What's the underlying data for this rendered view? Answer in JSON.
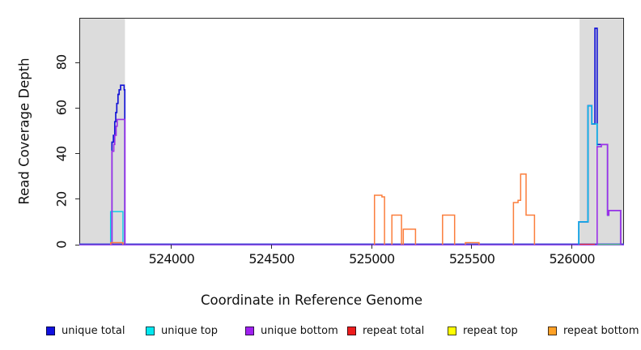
{
  "figure": {
    "x_axis_title": "Coordinate in Reference Genome",
    "y_axis_title": "Read Coverage Depth",
    "background_color": "#ffffff",
    "shaded_band_color": "#DCDCDC",
    "border_color": "#2b2b2b"
  },
  "chart_data": {
    "type": "line",
    "subtype": "read-coverage-step-profile",
    "title": "",
    "xlabel": "Coordinate in Reference Genome",
    "ylabel": "Read Coverage Depth",
    "xlim": [
      523540,
      526260
    ],
    "ylim": [
      0,
      99.6
    ],
    "xticks": [
      524000,
      524500,
      525000,
      525500,
      526000
    ],
    "yticks": [
      0,
      20,
      40,
      60,
      80
    ],
    "grid": false,
    "legend_position": "bottom",
    "shaded_regions": [
      {
        "x1": 523540,
        "x2": 523768,
        "color": "#DCDCDC"
      },
      {
        "x1": 526038,
        "x2": 526260,
        "color": "#DCDCDC"
      }
    ],
    "series": [
      {
        "name": "unique total",
        "color": "#1414D6",
        "stroke_width": 1.7,
        "segments": [
          [
            523703,
            523710,
            45
          ],
          [
            523710,
            523717,
            48
          ],
          [
            523717,
            523722,
            54
          ],
          [
            523722,
            523727,
            58
          ],
          [
            523727,
            523733,
            62
          ],
          [
            523733,
            523739,
            66
          ],
          [
            523739,
            523746,
            68
          ],
          [
            523746,
            523764,
            70
          ],
          [
            523764,
            523767,
            68
          ],
          [
            526034,
            526080,
            10
          ],
          [
            526080,
            526099,
            61
          ],
          [
            526099,
            526115,
            53
          ],
          [
            526115,
            526126,
            95
          ],
          [
            526126,
            526178,
            44
          ],
          [
            526178,
            526184,
            13
          ],
          [
            526184,
            526243,
            15
          ]
        ]
      },
      {
        "name": "unique top",
        "color": "#00CDE8",
        "stroke_width": 1.3,
        "segments": [
          [
            523696,
            523758,
            14.5
          ],
          [
            526034,
            526080,
            10
          ],
          [
            526080,
            526099,
            61
          ],
          [
            526099,
            526126,
            53
          ]
        ]
      },
      {
        "name": "unique bottom",
        "color": "#9B30E8",
        "stroke_width": 1.6,
        "segments": [
          [
            523703,
            523712,
            41
          ],
          [
            523712,
            523717,
            44
          ],
          [
            523717,
            523724,
            48
          ],
          [
            523724,
            523729,
            52
          ],
          [
            523729,
            523768,
            55
          ],
          [
            526126,
            526147,
            43
          ],
          [
            526147,
            526178,
            44
          ],
          [
            526178,
            526184,
            13
          ],
          [
            526184,
            526243,
            15
          ]
        ]
      },
      {
        "name": "repeat total",
        "color": "#E23A3A",
        "stroke_width": 1.2,
        "segments": []
      },
      {
        "name": "repeat top",
        "color": "#F5E800",
        "stroke_width": 1.2,
        "segments": []
      },
      {
        "name": "repeat bottom",
        "color": "#FB7E3C",
        "stroke_width": 1.5,
        "segments": [
          [
            523697,
            523758,
            0.9
          ],
          [
            525014,
            525051,
            21.7
          ],
          [
            525051,
            525064,
            21
          ],
          [
            525101,
            525149,
            13
          ],
          [
            525158,
            525219,
            6.8
          ],
          [
            525354,
            525414,
            13
          ],
          [
            525468,
            525536,
            0.9
          ],
          [
            525708,
            525731,
            18.5
          ],
          [
            525731,
            525744,
            19.5
          ],
          [
            525744,
            525771,
            31
          ],
          [
            525771,
            525813,
            13
          ]
        ]
      }
    ],
    "baseline_marks": [
      {
        "x1": 523540,
        "x2": 526260,
        "color": "#9B4BF0",
        "dy": 1.0
      },
      {
        "x1": 523540,
        "x2": 526260,
        "color": "#4646E2",
        "dy": -0.3
      },
      {
        "x1": 526038,
        "x2": 526115,
        "color": "#E23A3A",
        "dy": 0.1
      },
      {
        "x1": 526127,
        "x2": 526248,
        "color": "#55C389",
        "dy": 0.3
      }
    ]
  },
  "legend": {
    "items": [
      {
        "label": "unique total",
        "color": "#1010E0"
      },
      {
        "label": "unique top",
        "color": "#00E8F0"
      },
      {
        "label": "unique bottom",
        "color": "#A020F0"
      },
      {
        "label": "repeat total",
        "color": "#EE1C1C"
      },
      {
        "label": "repeat top",
        "color": "#FFFF00"
      },
      {
        "label": "repeat bottom",
        "color": "#FFA126"
      }
    ]
  }
}
